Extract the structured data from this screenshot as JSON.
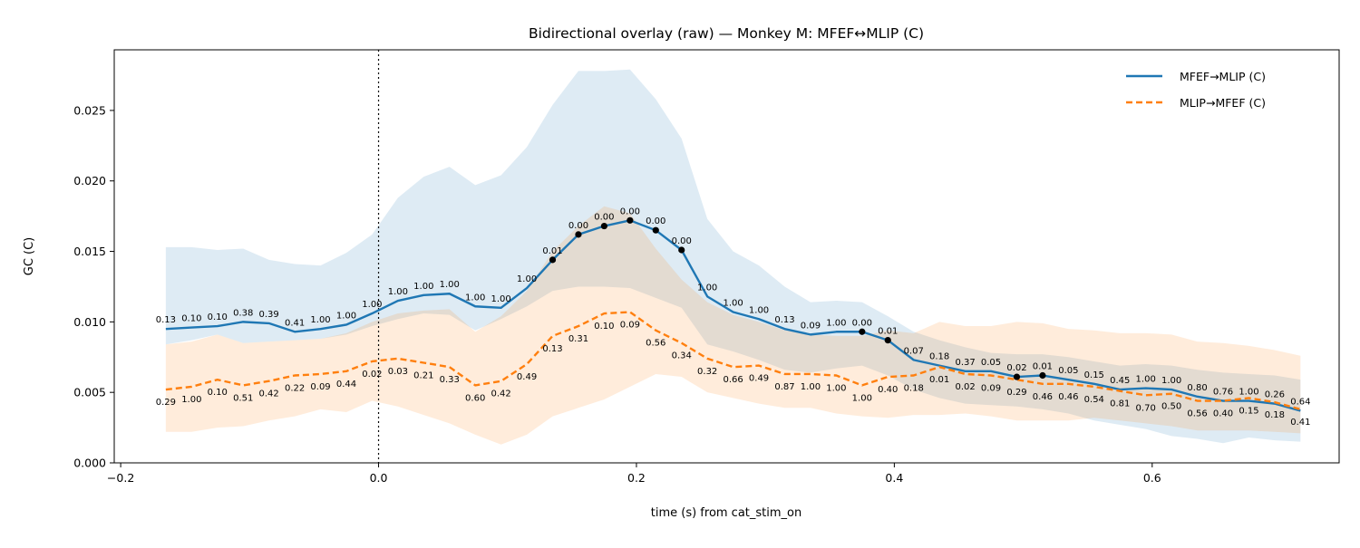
{
  "chart_data": {
    "type": "line",
    "title": "Bidirectional overlay (raw) — Monkey M: MFEF↔MLIP (C)",
    "xlabel": "time (s) from cat_stim_on",
    "ylabel": "GC (C)",
    "xlim": [
      -0.205,
      0.745
    ],
    "ylim": [
      0.0,
      0.0293
    ],
    "x_ticks": [
      -0.2,
      0.0,
      0.2,
      0.4,
      0.6
    ],
    "x_tick_labels": [
      "−0.2",
      "0.0",
      "0.2",
      "0.4",
      "0.6"
    ],
    "y_ticks": [
      0.0,
      0.005,
      0.01,
      0.015,
      0.02,
      0.025
    ],
    "y_tick_labels": [
      "0.000",
      "0.005",
      "0.010",
      "0.015",
      "0.020",
      "0.025"
    ],
    "grid": false,
    "legend_position": "top-right",
    "event_line_x": 0.0,
    "x": [
      -0.165,
      -0.145,
      -0.125,
      -0.105,
      -0.085,
      -0.065,
      -0.045,
      -0.025,
      -0.005,
      0.015,
      0.035,
      0.055,
      0.075,
      0.095,
      0.115,
      0.135,
      0.155,
      0.175,
      0.195,
      0.215,
      0.235,
      0.255,
      0.275,
      0.295,
      0.315,
      0.335,
      0.355,
      0.375,
      0.395,
      0.415,
      0.435,
      0.455,
      0.475,
      0.495,
      0.515,
      0.535,
      0.555,
      0.575,
      0.595,
      0.615,
      0.635,
      0.655,
      0.675,
      0.695,
      0.715
    ],
    "series": [
      {
        "name": "MFEF→MLIP (C)",
        "color": "#1f77b4",
        "style": "solid",
        "values": [
          0.0095,
          0.0096,
          0.0097,
          0.01,
          0.0099,
          0.0093,
          0.0095,
          0.0098,
          0.0106,
          0.0115,
          0.0119,
          0.012,
          0.0111,
          0.011,
          0.0124,
          0.0144,
          0.0162,
          0.0168,
          0.0172,
          0.0165,
          0.0151,
          0.0118,
          0.0107,
          0.0102,
          0.0095,
          0.0091,
          0.0093,
          0.0093,
          0.0087,
          0.0073,
          0.0069,
          0.0065,
          0.0065,
          0.0061,
          0.0062,
          0.0059,
          0.0056,
          0.0052,
          0.0053,
          0.0052,
          0.0047,
          0.0044,
          0.0044,
          0.0042,
          0.0037
        ],
        "band_upper": [
          0.0153,
          0.0153,
          0.0151,
          0.0152,
          0.0144,
          0.0141,
          0.014,
          0.0149,
          0.0162,
          0.0188,
          0.0203,
          0.021,
          0.0197,
          0.0204,
          0.0224,
          0.0254,
          0.0278,
          0.0278,
          0.0279,
          0.0258,
          0.023,
          0.0173,
          0.015,
          0.014,
          0.0125,
          0.0114,
          0.0115,
          0.0114,
          0.0104,
          0.0093,
          0.0087,
          0.0082,
          0.0078,
          0.0077,
          0.0077,
          0.0075,
          0.0072,
          0.0069,
          0.007,
          0.0069,
          0.0066,
          0.0064,
          0.0063,
          0.0062,
          0.0059
        ],
        "band_lower": [
          0.0084,
          0.0087,
          0.0091,
          0.0085,
          0.0086,
          0.0087,
          0.0088,
          0.0091,
          0.0097,
          0.0102,
          0.0106,
          0.0105,
          0.0094,
          0.0102,
          0.0111,
          0.0122,
          0.0125,
          0.0125,
          0.0124,
          0.0117,
          0.011,
          0.0084,
          0.0079,
          0.0073,
          0.0066,
          0.0064,
          0.0067,
          0.0069,
          0.0062,
          0.0052,
          0.0046,
          0.0042,
          0.0041,
          0.004,
          0.0038,
          0.0035,
          0.003,
          0.0027,
          0.0024,
          0.0019,
          0.0017,
          0.0014,
          0.0018,
          0.0016,
          0.0015
        ],
        "p_labels": [
          "0.13",
          "0.10",
          "0.10",
          "0.38",
          "0.39",
          "0.41",
          "1.00",
          "1.00",
          "1.00",
          "1.00",
          "1.00",
          "1.00",
          "1.00",
          "1.00",
          "1.00",
          "0.01",
          "0.00",
          "0.00",
          "0.00",
          "0.00",
          "0.00",
          "1.00",
          "1.00",
          "1.00",
          "0.13",
          "0.09",
          "1.00",
          "0.00",
          "0.01",
          "0.07",
          "0.18",
          "0.37",
          "0.05",
          "0.02",
          "0.01",
          "0.05",
          "0.15",
          "0.45",
          "1.00",
          "1.00",
          "0.80",
          "0.76",
          "1.00",
          "0.26",
          "0.64"
        ],
        "significant": [
          0,
          0,
          0,
          0,
          0,
          0,
          0,
          0,
          0,
          0,
          0,
          0,
          0,
          0,
          0,
          1,
          1,
          1,
          1,
          1,
          1,
          0,
          0,
          0,
          0,
          0,
          0,
          1,
          1,
          0,
          0,
          0,
          0,
          1,
          1,
          0,
          0,
          0,
          0,
          0,
          0,
          0,
          0,
          0,
          0
        ]
      },
      {
        "name": "MLIP→MFEF (C)",
        "color": "#ff7f0e",
        "style": "dashed",
        "values": [
          0.0052,
          0.0054,
          0.0059,
          0.0055,
          0.0058,
          0.0062,
          0.0063,
          0.0065,
          0.0072,
          0.0074,
          0.0071,
          0.0068,
          0.0055,
          0.0058,
          0.007,
          0.009,
          0.0097,
          0.0106,
          0.0107,
          0.0094,
          0.0085,
          0.0074,
          0.0068,
          0.0069,
          0.0063,
          0.0063,
          0.0062,
          0.0055,
          0.0061,
          0.0062,
          0.0068,
          0.0063,
          0.0062,
          0.0059,
          0.0056,
          0.0056,
          0.0054,
          0.0051,
          0.0048,
          0.0049,
          0.0044,
          0.0044,
          0.0046,
          0.0043,
          0.0038
        ],
        "band_upper": [
          0.0084,
          0.0086,
          0.0091,
          0.0085,
          0.0086,
          0.0087,
          0.0088,
          0.0092,
          0.01,
          0.0106,
          0.0108,
          0.0109,
          0.0093,
          0.0104,
          0.0122,
          0.015,
          0.0168,
          0.0182,
          0.0177,
          0.0152,
          0.013,
          0.0114,
          0.0105,
          0.01,
          0.0094,
          0.0091,
          0.009,
          0.009,
          0.0094,
          0.0092,
          0.01,
          0.0097,
          0.0097,
          0.01,
          0.0099,
          0.0095,
          0.0094,
          0.0092,
          0.0092,
          0.0091,
          0.0086,
          0.0085,
          0.0083,
          0.008,
          0.0076
        ],
        "band_lower": [
          0.0022,
          0.0022,
          0.0025,
          0.0026,
          0.003,
          0.0033,
          0.0038,
          0.0036,
          0.0044,
          0.004,
          0.0034,
          0.0028,
          0.002,
          0.0013,
          0.002,
          0.0033,
          0.0039,
          0.0045,
          0.0054,
          0.0063,
          0.0061,
          0.005,
          0.0046,
          0.0042,
          0.0039,
          0.0039,
          0.0035,
          0.0033,
          0.0032,
          0.0034,
          0.0034,
          0.0035,
          0.0033,
          0.003,
          0.003,
          0.003,
          0.0032,
          0.003,
          0.0028,
          0.0026,
          0.0023,
          0.0023,
          0.0023,
          0.0022,
          0.0021
        ],
        "p_labels": [
          "0.29",
          "1.00",
          "0.10",
          "0.51",
          "0.42",
          "0.22",
          "0.09",
          "0.44",
          "0.02",
          "0.03",
          "0.21",
          "0.33",
          "0.60",
          "0.42",
          "0.49",
          "0.13",
          "0.31",
          "0.10",
          "0.09",
          "0.56",
          "0.34",
          "0.32",
          "0.66",
          "0.49",
          "0.87",
          "1.00",
          "1.00",
          "1.00",
          "0.40",
          "0.18",
          "0.01",
          "0.02",
          "0.09",
          "0.29",
          "0.46",
          "0.46",
          "0.54",
          "0.81",
          "0.70",
          "0.50",
          "0.56",
          "0.40",
          "0.15",
          "0.18",
          "0.41"
        ],
        "significant": [
          0,
          0,
          0,
          0,
          0,
          0,
          0,
          0,
          0,
          0,
          0,
          0,
          0,
          0,
          0,
          0,
          0,
          0,
          0,
          0,
          0,
          0,
          0,
          0,
          0,
          0,
          0,
          0,
          0,
          0,
          0,
          0,
          0,
          0,
          0,
          0,
          0,
          0,
          0,
          0,
          0,
          0,
          0,
          0,
          0
        ]
      }
    ]
  }
}
